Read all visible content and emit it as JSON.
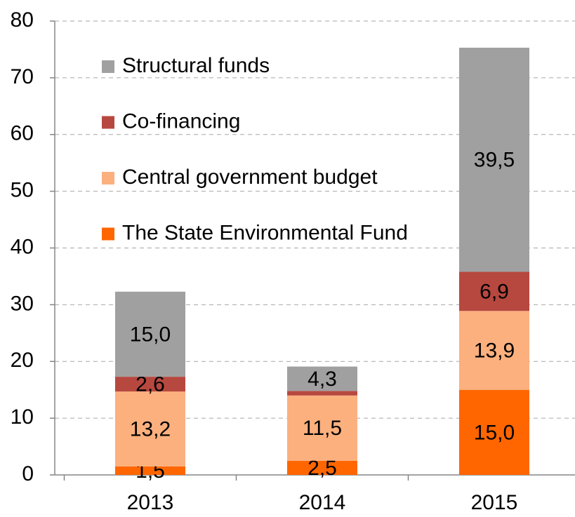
{
  "chart_data": {
    "type": "stacked_bar",
    "categories": [
      "2013",
      "2014",
      "2015"
    ],
    "series": [
      {
        "name": "The State Environmental Fund",
        "color": "#ff6600",
        "values": [
          1.5,
          2.5,
          15.0
        ],
        "value_labels": [
          "1,5",
          "2,5",
          "15,0"
        ]
      },
      {
        "name": "Central government budget",
        "color": "#fbb07e",
        "values": [
          13.2,
          11.5,
          13.9
        ],
        "value_labels": [
          "13,2",
          "11,5",
          "13,9"
        ]
      },
      {
        "name": "Co-financing",
        "color": "#b7483f",
        "values": [
          2.6,
          0.8,
          6.9
        ],
        "value_labels": [
          "2,6",
          null,
          "6,9"
        ]
      },
      {
        "name": "Structural funds",
        "color": "#a0a0a0",
        "values": [
          15.0,
          4.3,
          39.5
        ],
        "value_labels": [
          "15,0",
          "4,3",
          "39,5"
        ]
      }
    ],
    "ylim": [
      0,
      80
    ],
    "yticks": [
      0,
      10,
      20,
      30,
      40,
      50,
      60,
      70,
      80
    ],
    "grid": true,
    "legend": "upper left"
  }
}
